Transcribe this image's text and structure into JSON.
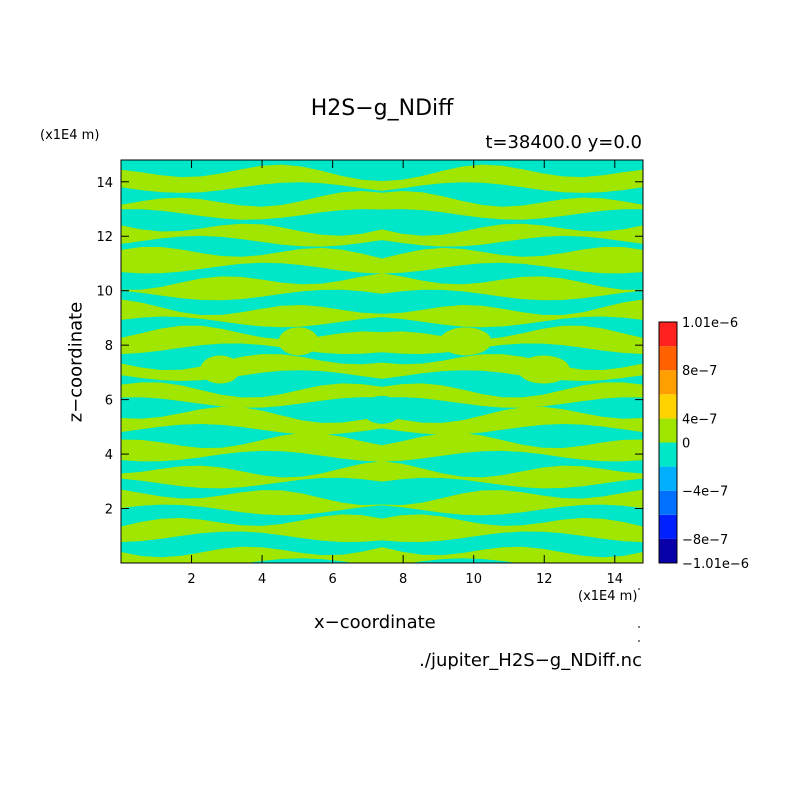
{
  "chart_data": {
    "type": "heatmap",
    "title": "H2S−g_NDiff",
    "subtitle": "t=38400.0 y=0.0",
    "xlabel": "x−coordinate",
    "ylabel": "z−coordinate",
    "x_unit": "(x1E4 m)",
    "y_unit": "(x1E4 m)",
    "xlim": [
      0,
      14.8
    ],
    "ylim": [
      0,
      14.8
    ],
    "x_ticks": [
      2,
      4,
      6,
      8,
      10,
      12,
      14
    ],
    "y_ticks": [
      2,
      4,
      6,
      8,
      10,
      12,
      14
    ],
    "grid": false,
    "dominant_levels": [
      {
        "range": [
          -2e-07,
          0
        ],
        "color": "#00e6c8"
      },
      {
        "range": [
          0,
          2e-07
        ],
        "color": "#a0e600"
      }
    ],
    "colorbar": {
      "placement": "right",
      "levels": [
        -1.01e-06,
        -8e-07,
        -6e-07,
        -4e-07,
        -2e-07,
        0,
        2e-07,
        4e-07,
        6e-07,
        8e-07,
        1.01e-06
      ],
      "colors": [
        "#0a00aa",
        "#0020ff",
        "#0070ff",
        "#00b0ff",
        "#00e6c8",
        "#a0e600",
        "#ffd200",
        "#ffa000",
        "#ff6000",
        "#ff2020"
      ],
      "tick_labels": [
        "1.01e−6",
        "8e−7",
        "4e−7",
        "0",
        "−4e−7",
        "−8e−7",
        "−1.01e−6"
      ]
    }
  },
  "footer": {
    "filename": "./jupiter_H2S−g_NDiff.nc"
  }
}
